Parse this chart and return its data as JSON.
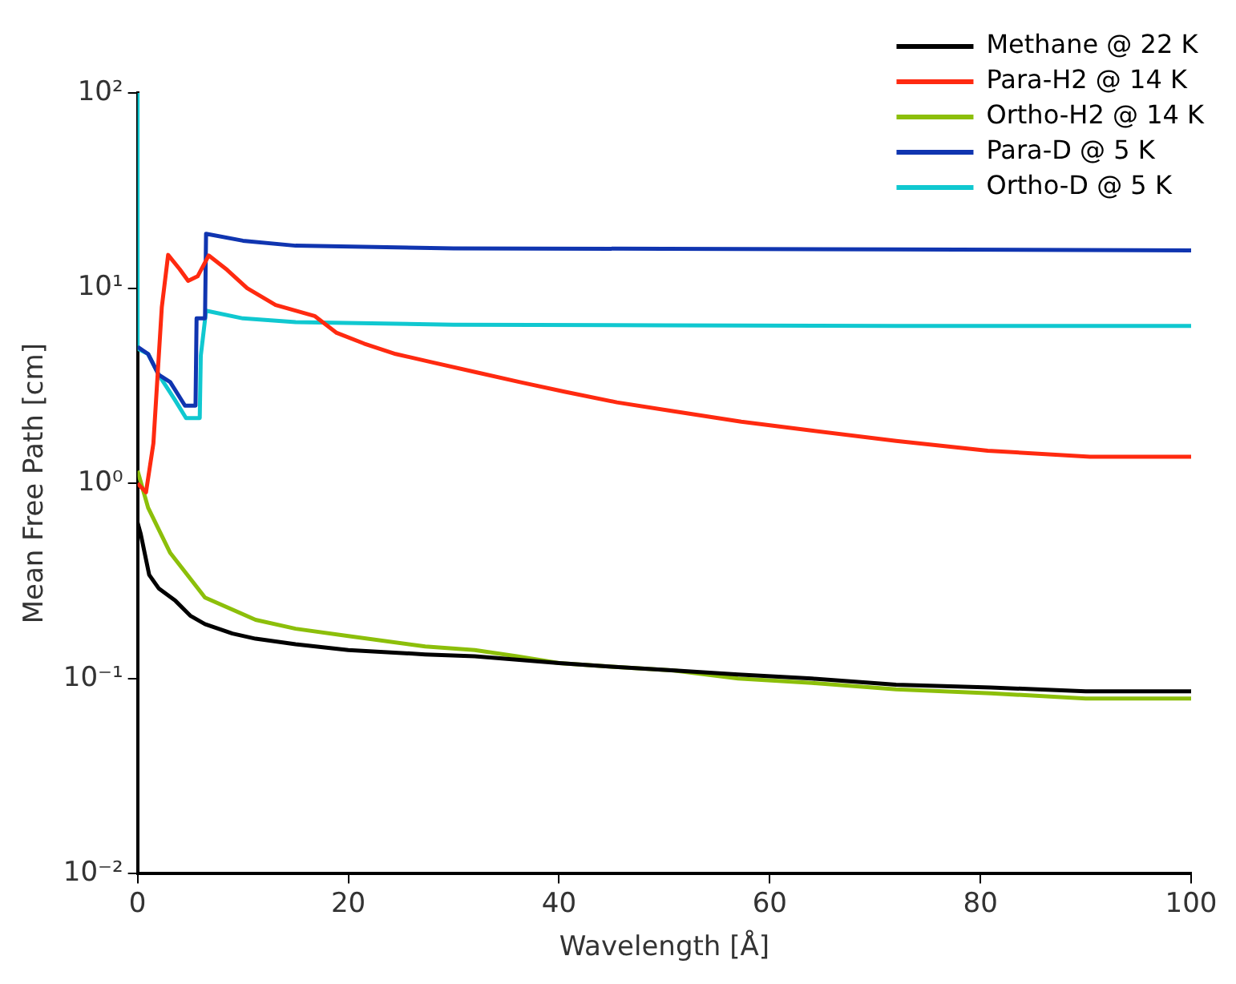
{
  "chart_data": {
    "type": "line",
    "xlabel": "Wavelength [Å]",
    "ylabel": "Mean Free Path [cm]",
    "log": "y",
    "grid": false,
    "legend": "top right",
    "marker": "none",
    "line_style": "solid",
    "xlim": [
      0,
      100
    ],
    "xticks": [
      0,
      20,
      40,
      60,
      80,
      100
    ],
    "ylim": [
      0.01,
      100
    ],
    "yticks": [
      {
        "value": 0.01,
        "label": "10⁻²"
      },
      {
        "value": 0.1,
        "label": "10⁻¹"
      },
      {
        "value": 1,
        "label": "10⁰"
      },
      {
        "value": 10,
        "label": "10¹"
      },
      {
        "value": 100,
        "label": "10²"
      }
    ],
    "series": [
      {
        "name": "Methane @ 22 K",
        "color": "#000000",
        "x": [
          0,
          0.3,
          1.1,
          2,
          3.6,
          5,
          6.4,
          9,
          11.2,
          15,
          20,
          27.3,
          32,
          36,
          40,
          45,
          51,
          57,
          64,
          72,
          81,
          90,
          100
        ],
        "values": [
          0.63,
          0.55,
          0.34,
          0.29,
          0.25,
          0.21,
          0.19,
          0.17,
          0.16,
          0.15,
          0.14,
          0.133,
          0.13,
          0.125,
          0.12,
          0.115,
          0.11,
          0.105,
          0.1,
          0.093,
          0.09,
          0.086,
          0.086
        ]
      },
      {
        "name": "Para-H2 @ 14 K",
        "color": "#ff2a10",
        "x": [
          0,
          0.8,
          1.5,
          2.3,
          2.9,
          4,
          4.8,
          5.7,
          6.75,
          8.5,
          10.4,
          13.1,
          16.8,
          18.9,
          21.5,
          24.5,
          27.7,
          32.2,
          36.3,
          40.5,
          45.5,
          50.9,
          57.3,
          64.1,
          72,
          80.7,
          90.4,
          100
        ],
        "values": [
          1.0,
          0.9,
          1.6,
          8,
          14.8,
          12.5,
          10.9,
          11.5,
          14.7,
          12.4,
          10,
          8.2,
          7.2,
          5.9,
          5.2,
          4.6,
          4.2,
          3.7,
          3.3,
          2.95,
          2.6,
          2.34,
          2.07,
          1.86,
          1.65,
          1.47,
          1.37,
          1.37
        ]
      },
      {
        "name": "Ortho-H2 @ 14 K",
        "color": "#8cbf0a",
        "x": [
          0,
          1,
          3.1,
          6.4,
          11.2,
          15,
          20,
          27.3,
          32,
          36,
          40,
          45,
          50.9,
          57,
          64,
          72,
          81,
          90,
          100
        ],
        "values": [
          1.16,
          0.75,
          0.44,
          0.26,
          0.2,
          0.18,
          0.165,
          0.146,
          0.14,
          0.13,
          0.12,
          0.115,
          0.11,
          0.1,
          0.095,
          0.088,
          0.084,
          0.079,
          0.079
        ]
      },
      {
        "name": "Para-D @ 5 K",
        "color": "#1035b0",
        "x": [
          0,
          1,
          2,
          3.1,
          4.5,
          5.5,
          5.6,
          6.4,
          6.5,
          10,
          15,
          30,
          50,
          72,
          100
        ],
        "values": [
          5,
          4.6,
          3.6,
          3.3,
          2.5,
          2.5,
          7,
          7,
          19,
          17.5,
          16.5,
          16,
          15.9,
          15.8,
          15.6
        ]
      },
      {
        "name": "Ortho-D @ 5 K",
        "color": "#10c8d0",
        "x": [
          0,
          0,
          1,
          2,
          3.5,
          4.6,
          5.9,
          6,
          6.5,
          10,
          15,
          30,
          50,
          72,
          100
        ],
        "values": [
          100,
          4.9,
          4.6,
          3.6,
          2.7,
          2.16,
          2.16,
          4.5,
          7.66,
          7,
          6.7,
          6.5,
          6.45,
          6.4,
          6.4
        ]
      }
    ]
  }
}
